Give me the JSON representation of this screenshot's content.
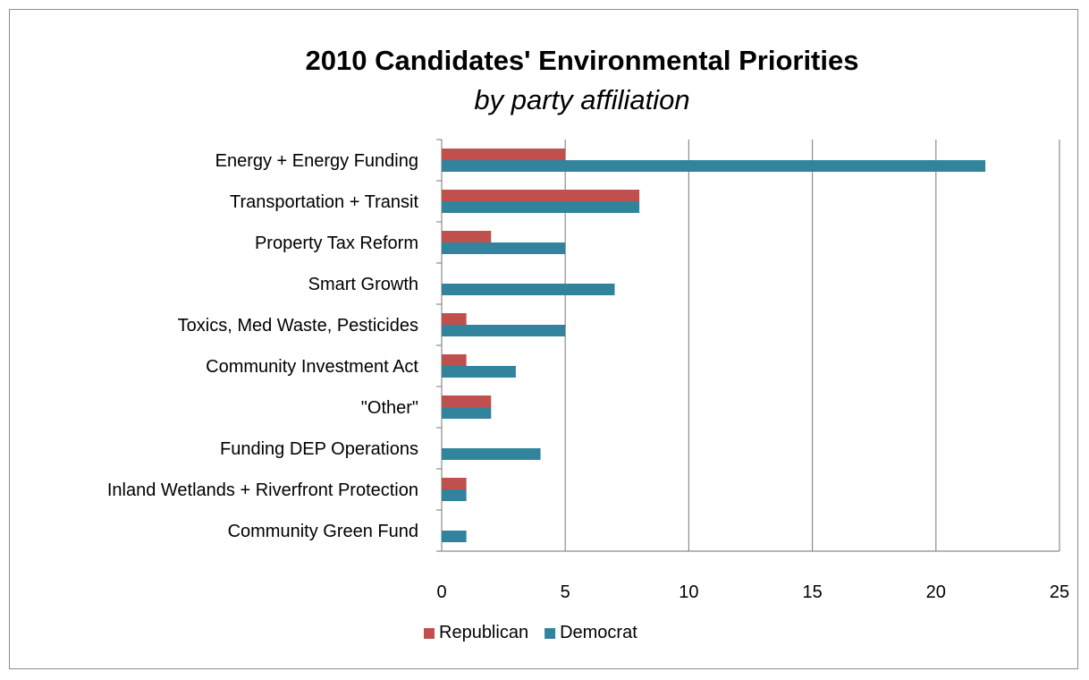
{
  "chart_data": {
    "type": "bar",
    "orientation": "horizontal",
    "title": "2010 Candidates' Environmental  Priorities",
    "subtitle": "by party affiliation",
    "categories": [
      "Energy + Energy Funding",
      "Transportation + Transit",
      "Property Tax Reform",
      "Smart Growth",
      "Toxics, Med Waste, Pesticides",
      "Community Investment Act",
      "\"Other\"",
      "Funding DEP Operations",
      "Inland Wetlands + Riverfront Protection",
      "Community Green Fund"
    ],
    "series": [
      {
        "name": "Republican",
        "color": "#c0504d",
        "values": [
          5,
          8,
          2,
          0,
          1,
          1,
          2,
          0,
          1,
          0
        ]
      },
      {
        "name": "Democrat",
        "color": "#31849b",
        "values": [
          22,
          8,
          5,
          7,
          5,
          3,
          2,
          4,
          1,
          1
        ]
      }
    ],
    "xlim": [
      0,
      25
    ],
    "xticks": [
      0,
      5,
      10,
      15,
      20,
      25
    ],
    "grid": true,
    "legend_position": "bottom",
    "gridline_color": "#8c8c8c"
  }
}
